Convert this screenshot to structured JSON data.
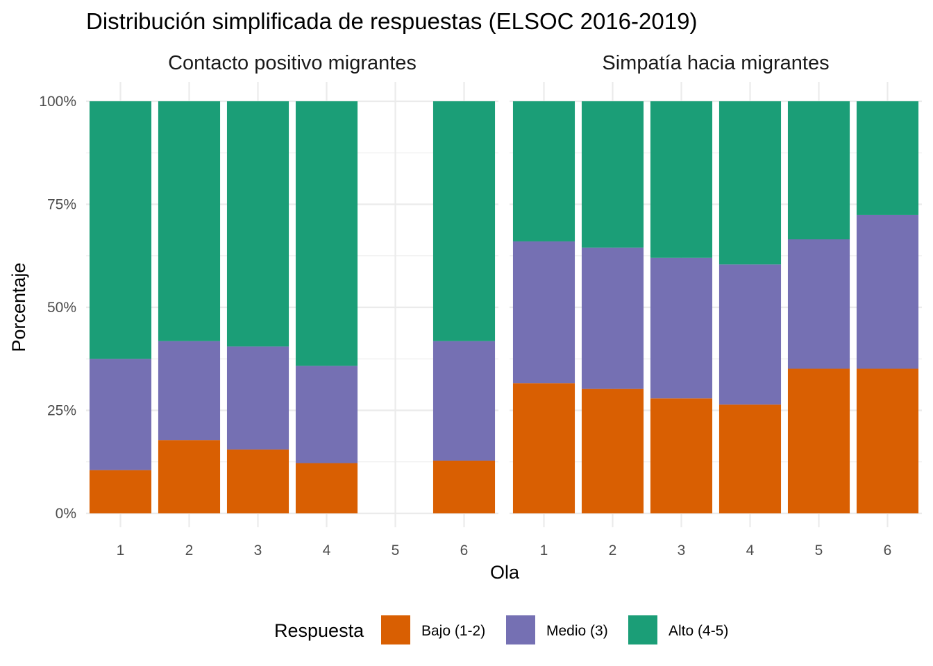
{
  "chart_data": {
    "type": "bar",
    "stacked": true,
    "title": "Distribución simplificada de respuestas (ELSOC 2016-2019)",
    "xlabel": "Ola",
    "ylabel": "Porcentaje",
    "ylim": [
      0,
      1
    ],
    "y_ticks": [
      "0%",
      "25%",
      "50%",
      "75%",
      "100%"
    ],
    "categories": [
      "1",
      "2",
      "3",
      "4",
      "5",
      "6"
    ],
    "legend": {
      "title": "Respuesta",
      "position": "bottom",
      "items": [
        {
          "label": "Bajo (1-2)",
          "color": "#D95F02"
        },
        {
          "label": "Medio (3)",
          "color": "#7570B3"
        },
        {
          "label": "Alto (4-5)",
          "color": "#1B9E77"
        }
      ]
    },
    "grid": true,
    "facets": [
      {
        "name": "Contacto positivo migrantes",
        "series": [
          {
            "name": "Bajo (1-2)",
            "values": [
              0.105,
              0.178,
              0.155,
              0.122,
              null,
              0.128
            ]
          },
          {
            "name": "Medio (3)",
            "values": [
              0.27,
              0.24,
              0.25,
              0.236,
              null,
              0.29
            ]
          },
          {
            "name": "Alto (4-5)",
            "values": [
              0.625,
              0.582,
              0.595,
              0.642,
              null,
              0.582
            ]
          }
        ]
      },
      {
        "name": "Simpatía hacia migrantes",
        "series": [
          {
            "name": "Bajo (1-2)",
            "values": [
              0.316,
              0.302,
              0.279,
              0.264,
              0.351,
              0.351
            ]
          },
          {
            "name": "Medio (3)",
            "values": [
              0.344,
              0.343,
              0.341,
              0.34,
              0.314,
              0.373
            ]
          },
          {
            "name": "Alto (4-5)",
            "values": [
              0.34,
              0.355,
              0.38,
              0.396,
              0.335,
              0.276
            ]
          }
        ]
      }
    ]
  }
}
